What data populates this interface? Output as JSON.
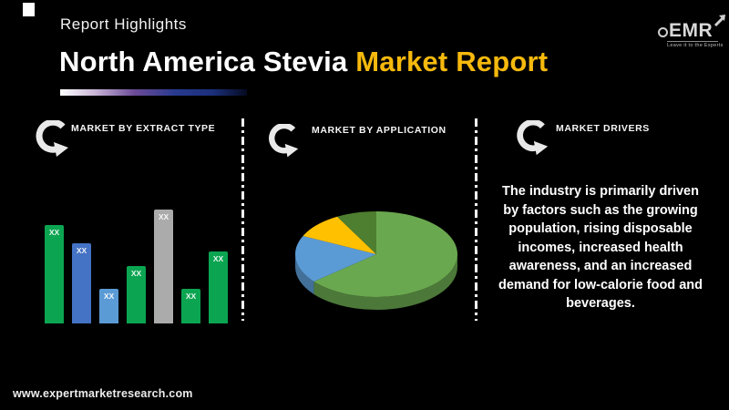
{
  "page": {
    "background": "#000000",
    "website": "www.expertmarketresearch.com"
  },
  "header": {
    "eyebrow": "Report Highlights",
    "title_white": "North America Stevia",
    "title_accent": "Market Report",
    "accent_color": "#f6b90d"
  },
  "logo": {
    "text": "EMR",
    "tagline": "Leave it to the Experts"
  },
  "sections": [
    {
      "heading": "MARKET BY EXTRACT TYPE"
    },
    {
      "heading": "MARKET BY APPLICATION"
    },
    {
      "heading": "MARKET DRIVERS",
      "body": "The industry is primarily driven by factors such as the growing population, rising disposable incomes, increased health awareness, and an increased demand for low-calorie food and beverages."
    }
  ],
  "chart_data": [
    {
      "type": "bar",
      "title": "Market by Extract Type",
      "bar_labels": [
        "XX",
        "XX",
        "XX",
        "XX",
        "XX",
        "XX",
        "XX"
      ],
      "values": [
        86,
        70,
        30,
        50,
        100,
        30,
        63
      ],
      "colors": [
        "#0ba551",
        "#4472c4",
        "#5b9bd5",
        "#0ba551",
        "#ababab",
        "#0ba551",
        "#0ba551"
      ],
      "ylim": [
        0,
        100
      ],
      "grid": false,
      "legend": false
    },
    {
      "type": "pie",
      "title": "Market by Application",
      "style": "3d",
      "values": [
        64,
        18,
        10,
        8
      ],
      "colors": [
        "#6aa84f",
        "#5b9bd5",
        "#ffc000",
        "#4e7e2f"
      ],
      "legend": false
    }
  ]
}
